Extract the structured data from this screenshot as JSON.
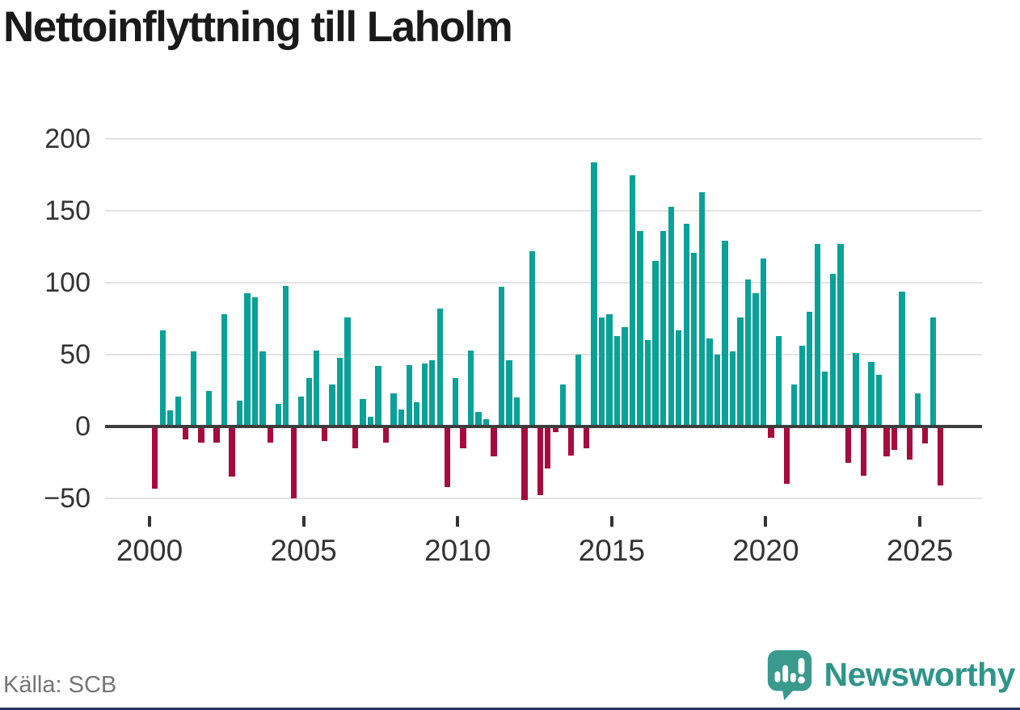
{
  "title": "Nettoinflyttning till Laholm",
  "source": "Källa: SCB",
  "branding": {
    "name": "Newsworthy"
  },
  "colors": {
    "positive": "#0aa198",
    "negative": "#a60b3c",
    "axis": "#3d3d3d",
    "grid": "#e3e3e3",
    "tick_label": "#333333",
    "source_text": "#757575",
    "brand_text": "#2e958a",
    "brand_icon": "#3a9a8e",
    "footer_line": "#22395c"
  },
  "chart_data": {
    "type": "bar",
    "title": "Nettoinflyttning till Laholm",
    "xlabel": "",
    "ylabel": "",
    "ylim": [
      -75,
      200
    ],
    "yticks": [
      200,
      150,
      100,
      50,
      0,
      -50
    ],
    "xticks": [
      2000,
      2005,
      2010,
      2015,
      2020,
      2025
    ],
    "grid": true,
    "legend": "none",
    "x": [
      "2000Q1",
      "2000Q2",
      "2000Q3",
      "2000Q4",
      "2001Q1",
      "2001Q2",
      "2001Q3",
      "2001Q4",
      "2002Q1",
      "2002Q2",
      "2002Q3",
      "2002Q4",
      "2003Q1",
      "2003Q2",
      "2003Q3",
      "2003Q4",
      "2004Q1",
      "2004Q2",
      "2004Q3",
      "2004Q4",
      "2005Q1",
      "2005Q2",
      "2005Q3",
      "2005Q4",
      "2006Q1",
      "2006Q2",
      "2006Q3",
      "2006Q4",
      "2007Q1",
      "2007Q2",
      "2007Q3",
      "2007Q4",
      "2008Q1",
      "2008Q2",
      "2008Q3",
      "2008Q4",
      "2009Q1",
      "2009Q2",
      "2009Q3",
      "2009Q4",
      "2010Q1",
      "2010Q2",
      "2010Q3",
      "2010Q4",
      "2011Q1",
      "2011Q2",
      "2011Q3",
      "2011Q4",
      "2012Q1",
      "2012Q2",
      "2012Q3",
      "2012Q4",
      "2013Q1",
      "2013Q2",
      "2013Q3",
      "2013Q4",
      "2014Q1",
      "2014Q2",
      "2014Q3",
      "2014Q4",
      "2015Q1",
      "2015Q2",
      "2015Q3",
      "2015Q4",
      "2016Q1",
      "2016Q2",
      "2016Q3",
      "2016Q4",
      "2017Q1",
      "2017Q2",
      "2017Q3",
      "2017Q4",
      "2018Q1",
      "2018Q2",
      "2018Q3",
      "2018Q4",
      "2019Q1",
      "2019Q2",
      "2019Q3",
      "2019Q4",
      "2020Q1",
      "2020Q2",
      "2020Q3",
      "2020Q4",
      "2021Q1",
      "2021Q2",
      "2021Q3",
      "2021Q4",
      "2022Q1",
      "2022Q2",
      "2022Q3",
      "2022Q4",
      "2023Q1",
      "2023Q2",
      "2023Q3",
      "2023Q4",
      "2024Q1",
      "2024Q2",
      "2024Q3",
      "2024Q4",
      "2025Q1",
      "2025Q2",
      "2025Q3"
    ],
    "values": [
      -43,
      67,
      11,
      21,
      -9,
      52,
      -11,
      25,
      -11,
      78,
      -35,
      18,
      93,
      90,
      52,
      -11,
      16,
      98,
      -50,
      21,
      34,
      53,
      -10,
      29,
      48,
      76,
      -15,
      19,
      7,
      42,
      -11,
      23,
      12,
      43,
      17,
      44,
      46,
      82,
      -42,
      34,
      -15,
      53,
      10,
      5,
      -21,
      97,
      46,
      20,
      -51,
      122,
      -48,
      -29,
      -4,
      29,
      -20,
      50,
      -15,
      184,
      76,
      78,
      63,
      69,
      175,
      136,
      60,
      115,
      136,
      153,
      67,
      141,
      121,
      163,
      61,
      50,
      129,
      52,
      76,
      102,
      93,
      117,
      -8,
      63,
      -40,
      29,
      56,
      80,
      127,
      38,
      106,
      127,
      -25,
      51,
      -34,
      45,
      36,
      -21,
      -16,
      94,
      -23,
      23,
      -12,
      76,
      -41
    ]
  }
}
